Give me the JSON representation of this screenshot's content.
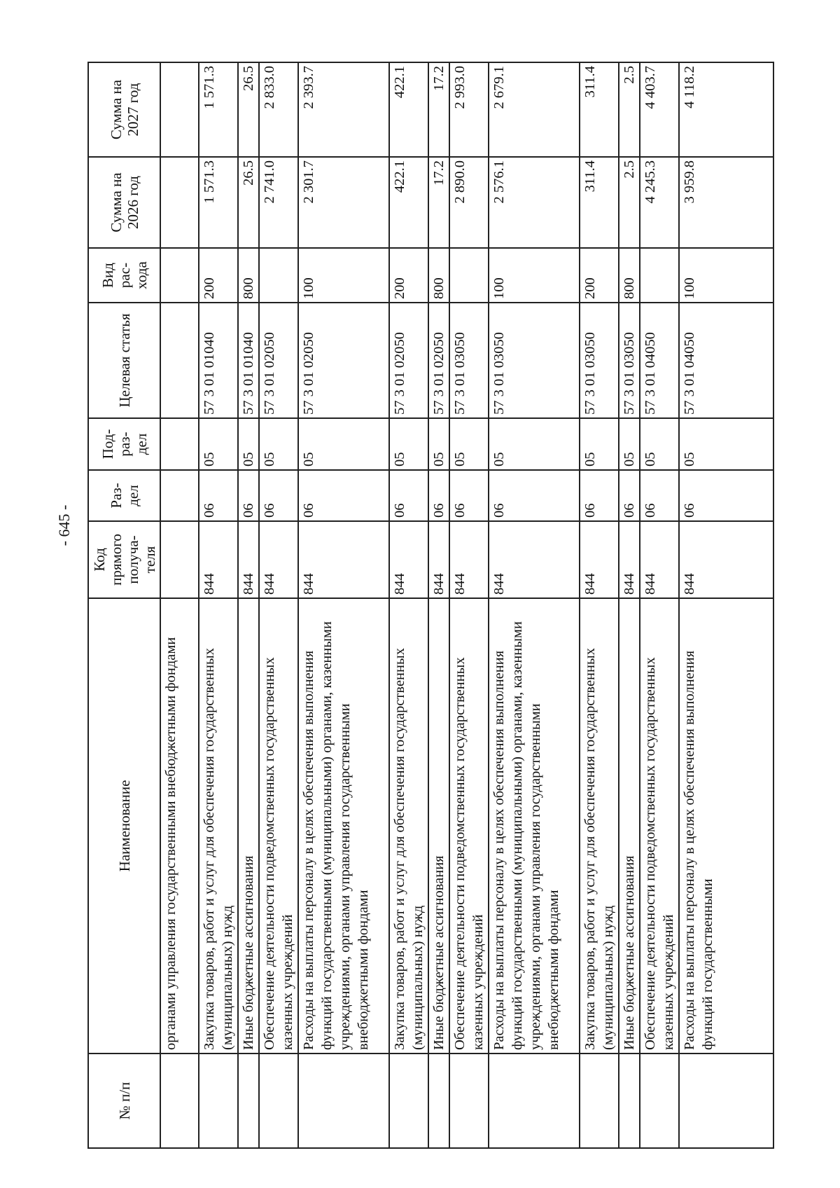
{
  "page_number": "- 645 -",
  "headers": [
    "№ п/п",
    "Наименование",
    "Код прямого получа-теля",
    "Раз-дел",
    "Под-раз-дел",
    "Целевая статья",
    "Вид рас-хода",
    "Сумма на 2026 год",
    "Сумма на 2027 год"
  ],
  "rows": [
    {
      "no": "",
      "name": "органами управления государственными внебюджетными фондами",
      "code": "",
      "razdel": "",
      "podrazdel": "",
      "target": "",
      "vid": "",
      "sum2026": "",
      "sum2027": ""
    },
    {
      "no": "",
      "name": "Закупка товаров, работ и услуг для обеспечения государственных (муниципальных) нужд",
      "code": "844",
      "razdel": "06",
      "podrazdel": "05",
      "target": "57 3 01 01040",
      "vid": "200",
      "sum2026": "1 571.3",
      "sum2027": "1 571.3"
    },
    {
      "no": "",
      "name": "Иные бюджетные ассигнования",
      "code": "844",
      "razdel": "06",
      "podrazdel": "05",
      "target": "57 3 01 01040",
      "vid": "800",
      "sum2026": "26.5",
      "sum2027": "26.5"
    },
    {
      "no": "",
      "name": "Обеспечение деятельности подведомственных государственных казенных учреждений",
      "code": "844",
      "razdel": "06",
      "podrazdel": "05",
      "target": "57 3 01 02050",
      "vid": "",
      "sum2026": "2 741.0",
      "sum2027": "2 833.0"
    },
    {
      "no": "",
      "name": "Расходы на выплаты персоналу в целях обеспечения выполнения функций государственными (муниципальными) органами, казенными учреждениями, органами управления государственными внебюджетными фондами",
      "code": "844",
      "razdel": "06",
      "podrazdel": "05",
      "target": "57 3 01 02050",
      "vid": "100",
      "sum2026": "2 301.7",
      "sum2027": "2 393.7"
    },
    {
      "no": "",
      "name": "Закупка товаров, работ и услуг для обеспечения государственных (муниципальных) нужд",
      "code": "844",
      "razdel": "06",
      "podrazdel": "05",
      "target": "57 3 01 02050",
      "vid": "200",
      "sum2026": "422.1",
      "sum2027": "422.1"
    },
    {
      "no": "",
      "name": "Иные бюджетные ассигнования",
      "code": "844",
      "razdel": "06",
      "podrazdel": "05",
      "target": "57 3 01 02050",
      "vid": "800",
      "sum2026": "17.2",
      "sum2027": "17.2"
    },
    {
      "no": "",
      "name": "Обеспечение деятельности подведомственных государственных казенных учреждений",
      "code": "844",
      "razdel": "06",
      "podrazdel": "05",
      "target": "57 3 01 03050",
      "vid": "",
      "sum2026": "2 890.0",
      "sum2027": "2 993.0"
    },
    {
      "no": "",
      "name": "Расходы на выплаты персоналу в целях обеспечения выполнения функций государственными (муниципальными) органами, казенными учреждениями, органами управления государственными внебюджетными фондами",
      "code": "844",
      "razdel": "06",
      "podrazdel": "05",
      "target": "57 3 01 03050",
      "vid": "100",
      "sum2026": "2 576.1",
      "sum2027": "2 679.1"
    },
    {
      "no": "",
      "name": "Закупка товаров, работ и услуг для обеспечения государственных (муниципальных) нужд",
      "code": "844",
      "razdel": "06",
      "podrazdel": "05",
      "target": "57 3 01 03050",
      "vid": "200",
      "sum2026": "311.4",
      "sum2027": "311.4"
    },
    {
      "no": "",
      "name": "Иные бюджетные ассигнования",
      "code": "844",
      "razdel": "06",
      "podrazdel": "05",
      "target": "57 3 01 03050",
      "vid": "800",
      "sum2026": "2.5",
      "sum2027": "2.5"
    },
    {
      "no": "",
      "name": "Обеспечение деятельности подведомственных государственных казенных учреждений",
      "code": "844",
      "razdel": "06",
      "podrazdel": "05",
      "target": "57 3 01 04050",
      "vid": "",
      "sum2026": "4 245.3",
      "sum2027": "4 403.7"
    },
    {
      "no": "",
      "name": "Расходы на выплаты персоналу в целях обеспечения выполнения функций государственными",
      "code": "844",
      "razdel": "06",
      "podrazdel": "05",
      "target": "57 3 01 04050",
      "vid": "100",
      "sum2026": "3 959.8",
      "sum2027": "4 118.2"
    }
  ]
}
